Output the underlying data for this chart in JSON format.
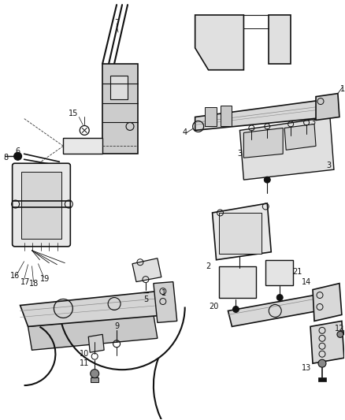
{
  "background_color": "#ffffff",
  "fig_width": 4.38,
  "fig_height": 5.33,
  "dpi": 100,
  "line_color": "#333333",
  "dark": "#111111",
  "gray": "#888888",
  "light_gray": "#cccccc",
  "mid_gray": "#aaaaaa"
}
